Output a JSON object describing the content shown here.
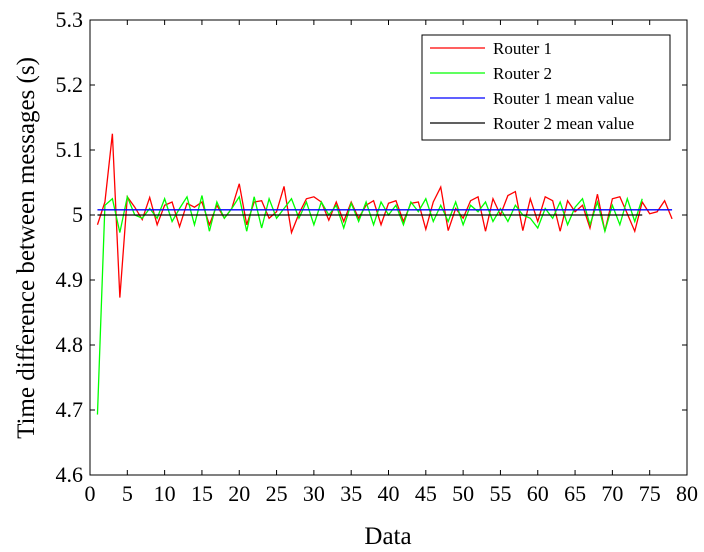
{
  "chart_data": {
    "type": "line",
    "xlabel": "Data",
    "ylabel": "Time difference between messages (s)",
    "xlim": [
      0,
      80
    ],
    "ylim": [
      4.6,
      5.3
    ],
    "xticks": [
      "0",
      "5",
      "10",
      "15",
      "20",
      "25",
      "30",
      "35",
      "40",
      "45",
      "50",
      "55",
      "60",
      "65",
      "70",
      "75",
      "80"
    ],
    "yticks": [
      "4.6",
      "4.7",
      "4.8",
      "4.9",
      "5",
      "5.1",
      "5.2",
      "5.3"
    ],
    "grid": false,
    "legend_position": "top-right",
    "series": [
      {
        "name": "Router 1",
        "color": "#ff0000",
        "x": [
          1,
          2,
          3,
          4,
          5,
          6,
          7,
          8,
          9,
          10,
          11,
          12,
          13,
          14,
          15,
          16,
          17,
          18,
          19,
          20,
          21,
          22,
          23,
          24,
          25,
          26,
          27,
          28,
          29,
          30,
          31,
          32,
          33,
          34,
          35,
          36,
          37,
          38,
          39,
          40,
          41,
          42,
          43,
          44,
          45,
          46,
          47,
          48,
          49,
          50,
          51,
          52,
          53,
          54,
          55,
          56,
          57,
          58,
          59,
          60,
          61,
          62,
          63,
          64,
          65,
          66,
          67,
          68,
          69,
          70,
          71,
          72,
          73,
          74,
          75,
          76,
          77,
          78
        ],
        "values": [
          4.985,
          5.02,
          5.125,
          4.873,
          5.028,
          5.012,
          4.993,
          5.027,
          4.985,
          5.015,
          5.02,
          4.982,
          5.018,
          5.012,
          5.02,
          4.985,
          5.015,
          4.995,
          5.01,
          5.048,
          4.985,
          5.02,
          5.022,
          4.995,
          5.005,
          5.044,
          4.973,
          5.002,
          5.025,
          5.028,
          5.02,
          4.992,
          5.02,
          4.99,
          5.02,
          4.995,
          5.015,
          5.022,
          4.985,
          5.018,
          5.022,
          4.99,
          5.018,
          5.02,
          4.978,
          5.02,
          5.043,
          4.976,
          5.01,
          4.995,
          5.022,
          5.028,
          4.975,
          5.025,
          5.0,
          5.03,
          5.036,
          4.976,
          5.025,
          4.99,
          5.028,
          5.022,
          4.975,
          5.022,
          5.005,
          5.015,
          4.98,
          5.032,
          4.975,
          5.025,
          5.028,
          5.002,
          4.975,
          5.02,
          5.002,
          5.005,
          5.022,
          4.994
        ]
      },
      {
        "name": "Router 2",
        "color": "#00ff00",
        "x": [
          1,
          2,
          3,
          4,
          5,
          6,
          7,
          8,
          9,
          10,
          11,
          12,
          13,
          14,
          15,
          16,
          17,
          18,
          19,
          20,
          21,
          22,
          23,
          24,
          25,
          26,
          27,
          28,
          29,
          30,
          31,
          32,
          33,
          34,
          35,
          36,
          37,
          38,
          39,
          40,
          41,
          42,
          43,
          44,
          45,
          46,
          47,
          48,
          49,
          50,
          51,
          52,
          53,
          54,
          55,
          56,
          57,
          58,
          59,
          60,
          61,
          62,
          63,
          64,
          65,
          66,
          67,
          68,
          69,
          70,
          71,
          72,
          73,
          74
        ],
        "values": [
          4.693,
          5.015,
          5.025,
          4.973,
          5.028,
          5.0,
          4.995,
          5.01,
          4.995,
          5.025,
          4.99,
          5.01,
          5.028,
          4.985,
          5.03,
          4.975,
          5.02,
          4.995,
          5.01,
          5.028,
          4.975,
          5.028,
          4.98,
          5.025,
          4.995,
          5.01,
          5.025,
          4.995,
          5.02,
          4.985,
          5.02,
          5.0,
          5.015,
          4.98,
          5.018,
          4.99,
          5.02,
          4.985,
          5.02,
          5.0,
          5.015,
          4.985,
          5.02,
          5.005,
          5.025,
          4.99,
          5.015,
          4.99,
          5.02,
          4.985,
          5.015,
          5.005,
          5.02,
          4.99,
          5.01,
          4.99,
          5.015,
          5.0,
          4.995,
          4.98,
          5.01,
          4.995,
          5.02,
          4.985,
          5.012,
          5.025,
          4.985,
          5.02,
          4.975,
          5.015,
          4.985,
          5.025,
          4.99,
          5.025
        ]
      },
      {
        "name": "Router 1 mean value",
        "color": "#0000ff",
        "x": [
          1,
          78
        ],
        "values": [
          5.008,
          5.008
        ]
      },
      {
        "name": "Router 2 mean value",
        "color": "#000000",
        "x": [
          1,
          74
        ],
        "values": [
          5.0,
          5.0
        ]
      }
    ]
  }
}
